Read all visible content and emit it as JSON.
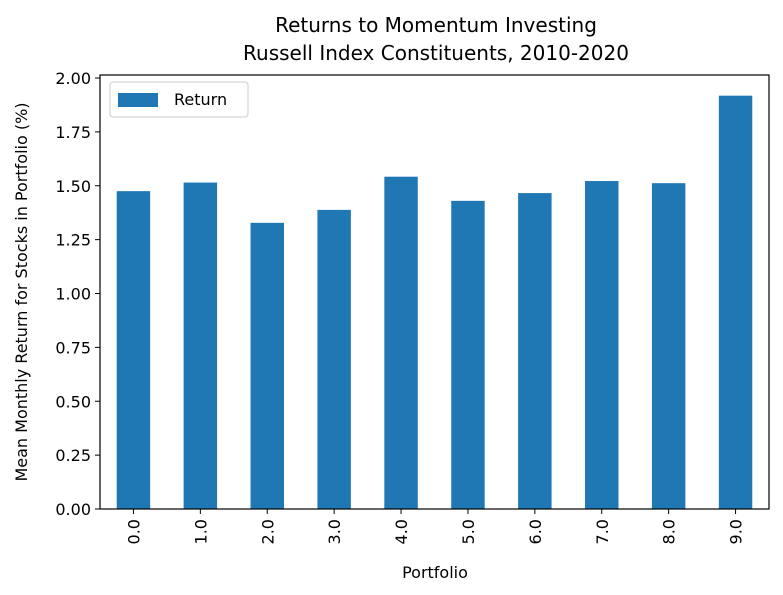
{
  "chart_data": {
    "type": "bar",
    "title": "Returns to Momentum Investing",
    "subtitle": "Russell Index Constituents, 2010-2020",
    "xlabel": "Portfolio",
    "ylabel": "Mean Monthly Return for Stocks in Portfolio (%)",
    "categories": [
      "0.0",
      "1.0",
      "2.0",
      "3.0",
      "4.0",
      "5.0",
      "6.0",
      "7.0",
      "8.0",
      "9.0"
    ],
    "series": [
      {
        "name": "Return",
        "color": "#1f77b4",
        "values": [
          1.475,
          1.515,
          1.328,
          1.388,
          1.542,
          1.43,
          1.466,
          1.522,
          1.512,
          1.918
        ]
      }
    ],
    "yticks": [
      "0.00",
      "0.25",
      "0.50",
      "0.75",
      "1.00",
      "1.25",
      "1.50",
      "1.75",
      "2.00"
    ],
    "ylim": [
      0,
      2.014
    ],
    "grid": false,
    "legend_position": "top-left"
  }
}
